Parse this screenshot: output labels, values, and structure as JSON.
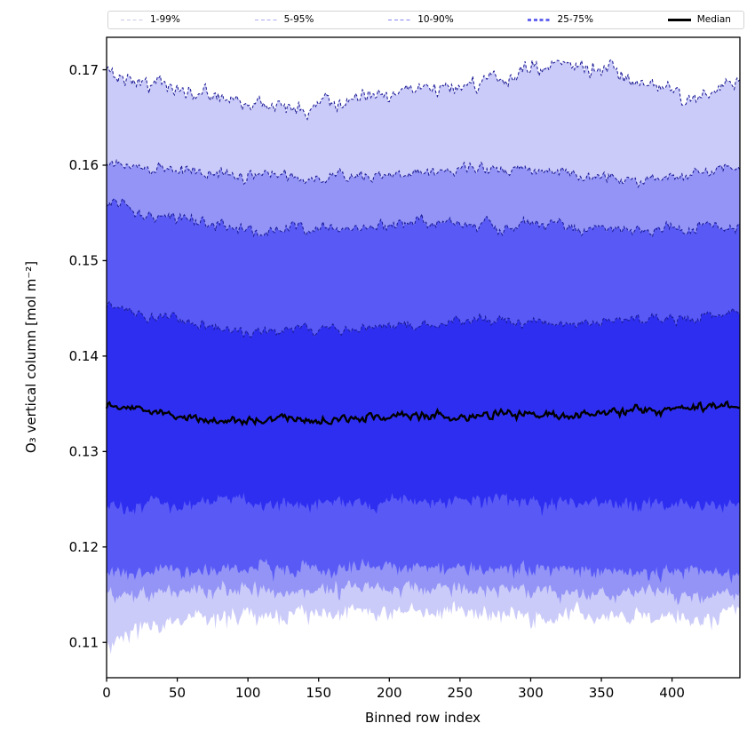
{
  "legend": {
    "entries": [
      {
        "label": "1-99%",
        "color": "#c9c9e4",
        "style": "dashed",
        "weight": 1.5
      },
      {
        "label": "5-95%",
        "color": "#a9a9ee",
        "style": "dashed",
        "weight": 1.5
      },
      {
        "label": "10-90%",
        "color": "#8686f3",
        "style": "dashed",
        "weight": 1.8
      },
      {
        "label": "25-75%",
        "color": "#6565ef",
        "style": "dashed",
        "weight": 2.5
      },
      {
        "label": "Median",
        "color": "#000000",
        "style": "solid",
        "weight": 3
      }
    ]
  },
  "chart_data": {
    "type": "area",
    "title": "",
    "xlabel": "Binned row index",
    "ylabel": "O₃ vertical column [mol m⁻²]",
    "xlim": [
      0,
      448
    ],
    "ylim": [
      0.1063,
      0.1734
    ],
    "x_ticks": [
      0,
      50,
      100,
      150,
      200,
      250,
      300,
      350,
      400
    ],
    "x_tick_labels": [
      "0",
      "50",
      "100",
      "150",
      "200",
      "250",
      "300",
      "350",
      "400"
    ],
    "y_ticks": [
      0.17,
      0.16,
      0.15,
      0.14,
      0.13,
      0.12,
      0.11
    ],
    "y_tick_labels": [
      "0.17",
      "0.16",
      "0.15",
      "0.14",
      "0.13",
      "0.12",
      "0.11"
    ],
    "grid": false,
    "legend_position": "top",
    "anchors_x": [
      0,
      35,
      70,
      105,
      140,
      175,
      210,
      245,
      280,
      315,
      350,
      385,
      420,
      448
    ],
    "series": [
      {
        "name": "p99",
        "values": [
          0.1697,
          0.1685,
          0.1676,
          0.1663,
          0.166,
          0.1668,
          0.1677,
          0.1683,
          0.169,
          0.1708,
          0.17,
          0.1682,
          0.1671,
          0.1686
        ],
        "noise": 0.00075,
        "spiky": false
      },
      {
        "name": "p95",
        "values": [
          0.1601,
          0.1597,
          0.1593,
          0.1589,
          0.1588,
          0.159,
          0.1591,
          0.1597,
          0.1596,
          0.1594,
          0.1589,
          0.1585,
          0.1592,
          0.1595
        ],
        "noise": 0.00055,
        "spiky": false
      },
      {
        "name": "p90",
        "values": [
          0.1558,
          0.1547,
          0.1539,
          0.1535,
          0.1533,
          0.1536,
          0.1538,
          0.154,
          0.1538,
          0.1537,
          0.1535,
          0.1533,
          0.1534,
          0.1536
        ],
        "noise": 0.00055,
        "spiky": false
      },
      {
        "name": "p75",
        "values": [
          0.145,
          0.1441,
          0.1432,
          0.1427,
          0.1425,
          0.1429,
          0.1433,
          0.1436,
          0.1437,
          0.1436,
          0.1437,
          0.1439,
          0.1442,
          0.1446
        ],
        "noise": 0.0005,
        "spiky": false
      },
      {
        "name": "median",
        "values": [
          0.1346,
          0.1339,
          0.1335,
          0.1332,
          0.1333,
          0.1335,
          0.1337,
          0.1336,
          0.1337,
          0.1338,
          0.134,
          0.1343,
          0.1347,
          0.1346
        ],
        "noise": 0.00042,
        "spiky": false
      },
      {
        "name": "p25",
        "values": [
          0.1243,
          0.1246,
          0.1248,
          0.1248,
          0.1247,
          0.1248,
          0.125,
          0.125,
          0.1249,
          0.1248,
          0.1247,
          0.1246,
          0.1244,
          0.1245
        ],
        "noise": 0.00055,
        "spiky": true
      },
      {
        "name": "p10",
        "values": [
          0.1175,
          0.1177,
          0.1178,
          0.1179,
          0.1179,
          0.118,
          0.1181,
          0.118,
          0.1179,
          0.1178,
          0.1177,
          0.1176,
          0.1174,
          0.1176
        ],
        "noise": 0.0006,
        "spiky": true
      },
      {
        "name": "p5",
        "values": [
          0.1152,
          0.1155,
          0.1156,
          0.1157,
          0.1157,
          0.1158,
          0.1158,
          0.1157,
          0.1156,
          0.1155,
          0.1154,
          0.1153,
          0.1152,
          0.1154
        ],
        "noise": 0.0006,
        "spiky": true
      },
      {
        "name": "p1",
        "values": [
          0.11,
          0.112,
          0.1126,
          0.1129,
          0.1131,
          0.1132,
          0.1133,
          0.1133,
          0.1132,
          0.1131,
          0.1129,
          0.1127,
          0.1126,
          0.1131
        ],
        "noise": 0.00075,
        "spiky": true
      }
    ],
    "bands": [
      {
        "label": "1-99%",
        "lower": "p1",
        "upper": "p99",
        "fill": "#cbcbf9"
      },
      {
        "label": "5-95%",
        "lower": "p5",
        "upper": "p95",
        "fill": "#9394f6"
      },
      {
        "label": "10-90%",
        "lower": "p10",
        "upper": "p90",
        "fill": "#595af6"
      },
      {
        "label": "25-75%",
        "lower": "p25",
        "upper": "p75",
        "fill": "#2e2ef1"
      }
    ],
    "edge_color": "#1b1b94",
    "median_color": "#000000",
    "spine_color": "#000000"
  }
}
